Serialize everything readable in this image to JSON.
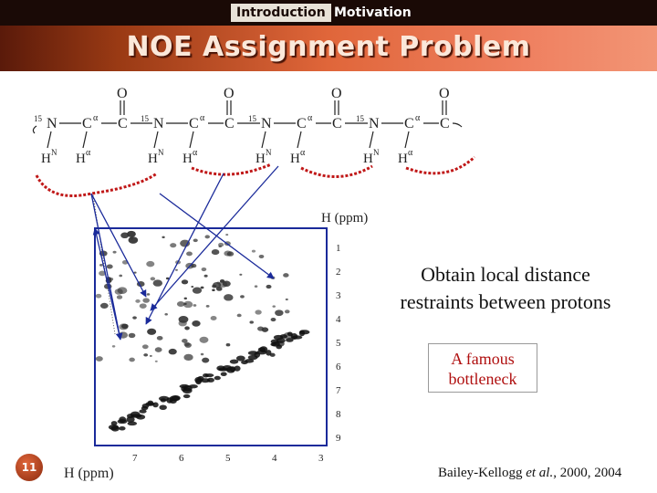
{
  "nav": {
    "active_tab": "Introduction",
    "next_tab": "Motivation"
  },
  "title": "NOE Assignment Problem",
  "backbone": {
    "oxygen": "O",
    "carbon": "C",
    "nitrogen": "N",
    "alpha": "α",
    "n15": "15",
    "h_n": "H",
    "h_n_sup": "N",
    "h_alpha": "H",
    "h_alpha_sup": "α"
  },
  "spectrum": {
    "top_axis_label": "H (ppm)",
    "bottom_axis_label": "H (ppm)",
    "right_ticks": [
      "1",
      "2",
      "3",
      "4",
      "5",
      "6",
      "7",
      "8",
      "9"
    ],
    "bottom_ticks": [
      "7",
      "6",
      "5",
      "4",
      "3"
    ]
  },
  "callout": {
    "line1": "Obtain local distance",
    "line2": "restraints between protons"
  },
  "famous": {
    "line1": "A famous",
    "line2": "bottleneck"
  },
  "citation": {
    "author": "Bailey-Kellogg ",
    "etal": "et al.",
    "years": ", 2000, 2004"
  },
  "slide_number": "11",
  "colors": {
    "accent": "#e0663a",
    "nav": "#1a0a06",
    "noe_red": "#c01818",
    "spectrum_blue": "#1a2a9a"
  }
}
